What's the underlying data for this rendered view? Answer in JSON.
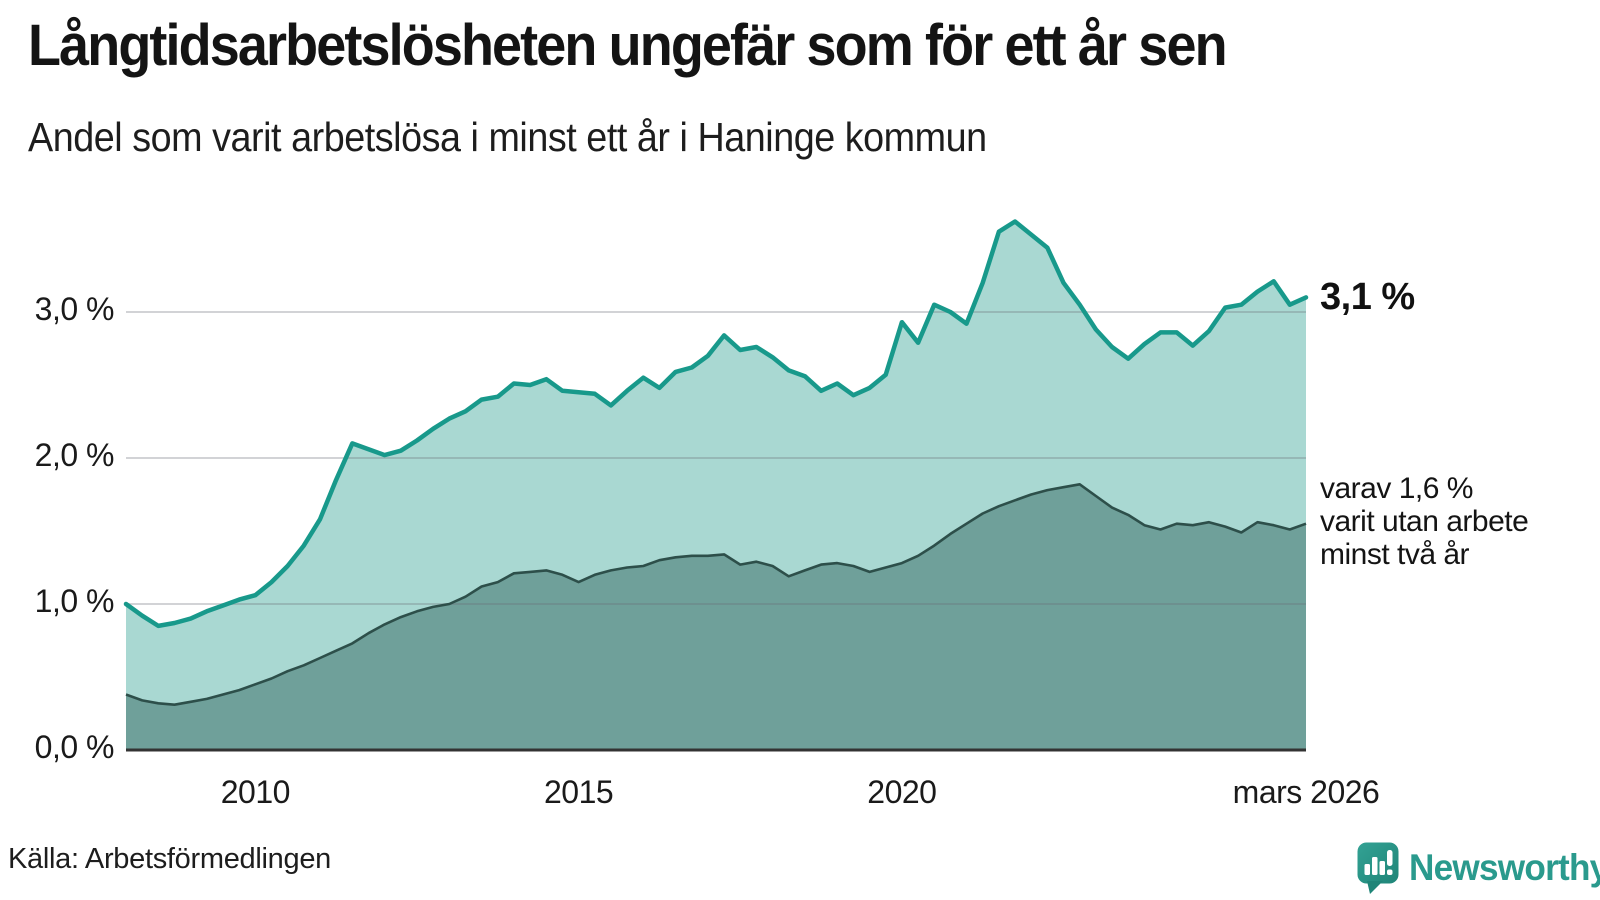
{
  "header": {
    "title": "Långtidsarbetslösheten ungefär som för ett år sen",
    "subtitle": "Andel som varit arbetslösa i minst ett år i Haninge kommun"
  },
  "chart_data": {
    "type": "area",
    "title": "Långtidsarbetslösheten ungefär som för ett år sen",
    "subtitle": "Andel som varit arbetslösa i minst ett år i Haninge kommun",
    "unit": "percent",
    "x_start": 2008.0,
    "x_step": 0.25,
    "x_end": 2026.25,
    "xlim": [
      2008.0,
      2026.25
    ],
    "ylim": [
      0,
      3.75
    ],
    "grid": "horizontal",
    "y_ticks": [
      {
        "label": "0,0 %",
        "value": 0
      },
      {
        "label": "1,0 %",
        "value": 1
      },
      {
        "label": "2,0 %",
        "value": 2
      },
      {
        "label": "3,0 %",
        "value": 3
      }
    ],
    "x_ticks": [
      {
        "label": "2010",
        "t": 2010
      },
      {
        "label": "2015",
        "t": 2015
      },
      {
        "label": "2020",
        "t": 2020
      },
      {
        "label": "mars 2026",
        "t": 2026.25
      }
    ],
    "series": [
      {
        "name": "Andel arbetslösa minst ett år",
        "line_color": "#18998b",
        "fill_color": "#a9d8d2",
        "end_value": 3.1,
        "values": [
          1.0,
          0.92,
          0.85,
          0.87,
          0.9,
          0.95,
          0.99,
          1.03,
          1.06,
          1.15,
          1.26,
          1.4,
          1.58,
          1.85,
          2.1,
          2.06,
          2.02,
          2.05,
          2.12,
          2.2,
          2.27,
          2.32,
          2.4,
          2.42,
          2.51,
          2.5,
          2.54,
          2.46,
          2.45,
          2.44,
          2.36,
          2.46,
          2.55,
          2.48,
          2.59,
          2.62,
          2.7,
          2.84,
          2.74,
          2.76,
          2.69,
          2.6,
          2.56,
          2.46,
          2.51,
          2.43,
          2.48,
          2.57,
          2.93,
          2.79,
          3.05,
          3.0,
          2.92,
          3.2,
          3.55,
          3.62,
          3.53,
          3.44,
          3.2,
          3.05,
          2.88,
          2.76,
          2.68,
          2.78,
          2.86,
          2.86,
          2.77,
          2.87,
          3.03,
          3.05,
          3.14,
          3.21,
          3.05,
          3.1
        ]
      },
      {
        "name": "varav utan arbete minst två år",
        "line_color": "#2d4f4a",
        "fill_color": "#6fa09a",
        "end_value": 1.6,
        "values": [
          0.38,
          0.34,
          0.32,
          0.31,
          0.33,
          0.35,
          0.38,
          0.41,
          0.45,
          0.49,
          0.54,
          0.58,
          0.63,
          0.68,
          0.73,
          0.8,
          0.86,
          0.91,
          0.95,
          0.98,
          1.0,
          1.05,
          1.12,
          1.15,
          1.21,
          1.22,
          1.23,
          1.2,
          1.15,
          1.2,
          1.23,
          1.25,
          1.26,
          1.3,
          1.32,
          1.33,
          1.33,
          1.34,
          1.27,
          1.29,
          1.26,
          1.19,
          1.23,
          1.27,
          1.28,
          1.26,
          1.22,
          1.25,
          1.28,
          1.33,
          1.4,
          1.48,
          1.55,
          1.62,
          1.67,
          1.71,
          1.75,
          1.78,
          1.8,
          1.82,
          1.74,
          1.66,
          1.61,
          1.54,
          1.51,
          1.55,
          1.54,
          1.56,
          1.53,
          1.49,
          1.56,
          1.54,
          1.51,
          1.55
        ]
      }
    ]
  },
  "annotations": {
    "end_value_label": "3,1 %",
    "secondary_label_lines": [
      "varav 1,6 %",
      "varit utan arbete",
      "minst två år"
    ]
  },
  "footer": {
    "source": "Källa: Arbetsförmedlingen",
    "brand": "Newsworthy"
  },
  "colors": {
    "accent_line": "#18998b",
    "accent_fill": "#a9d8d2",
    "dark_line": "#2d4f4a",
    "dark_fill": "#6fa09a",
    "gridline": "#d9dadd",
    "axis": "#333333",
    "brand_teal": "#2a9a8d"
  }
}
